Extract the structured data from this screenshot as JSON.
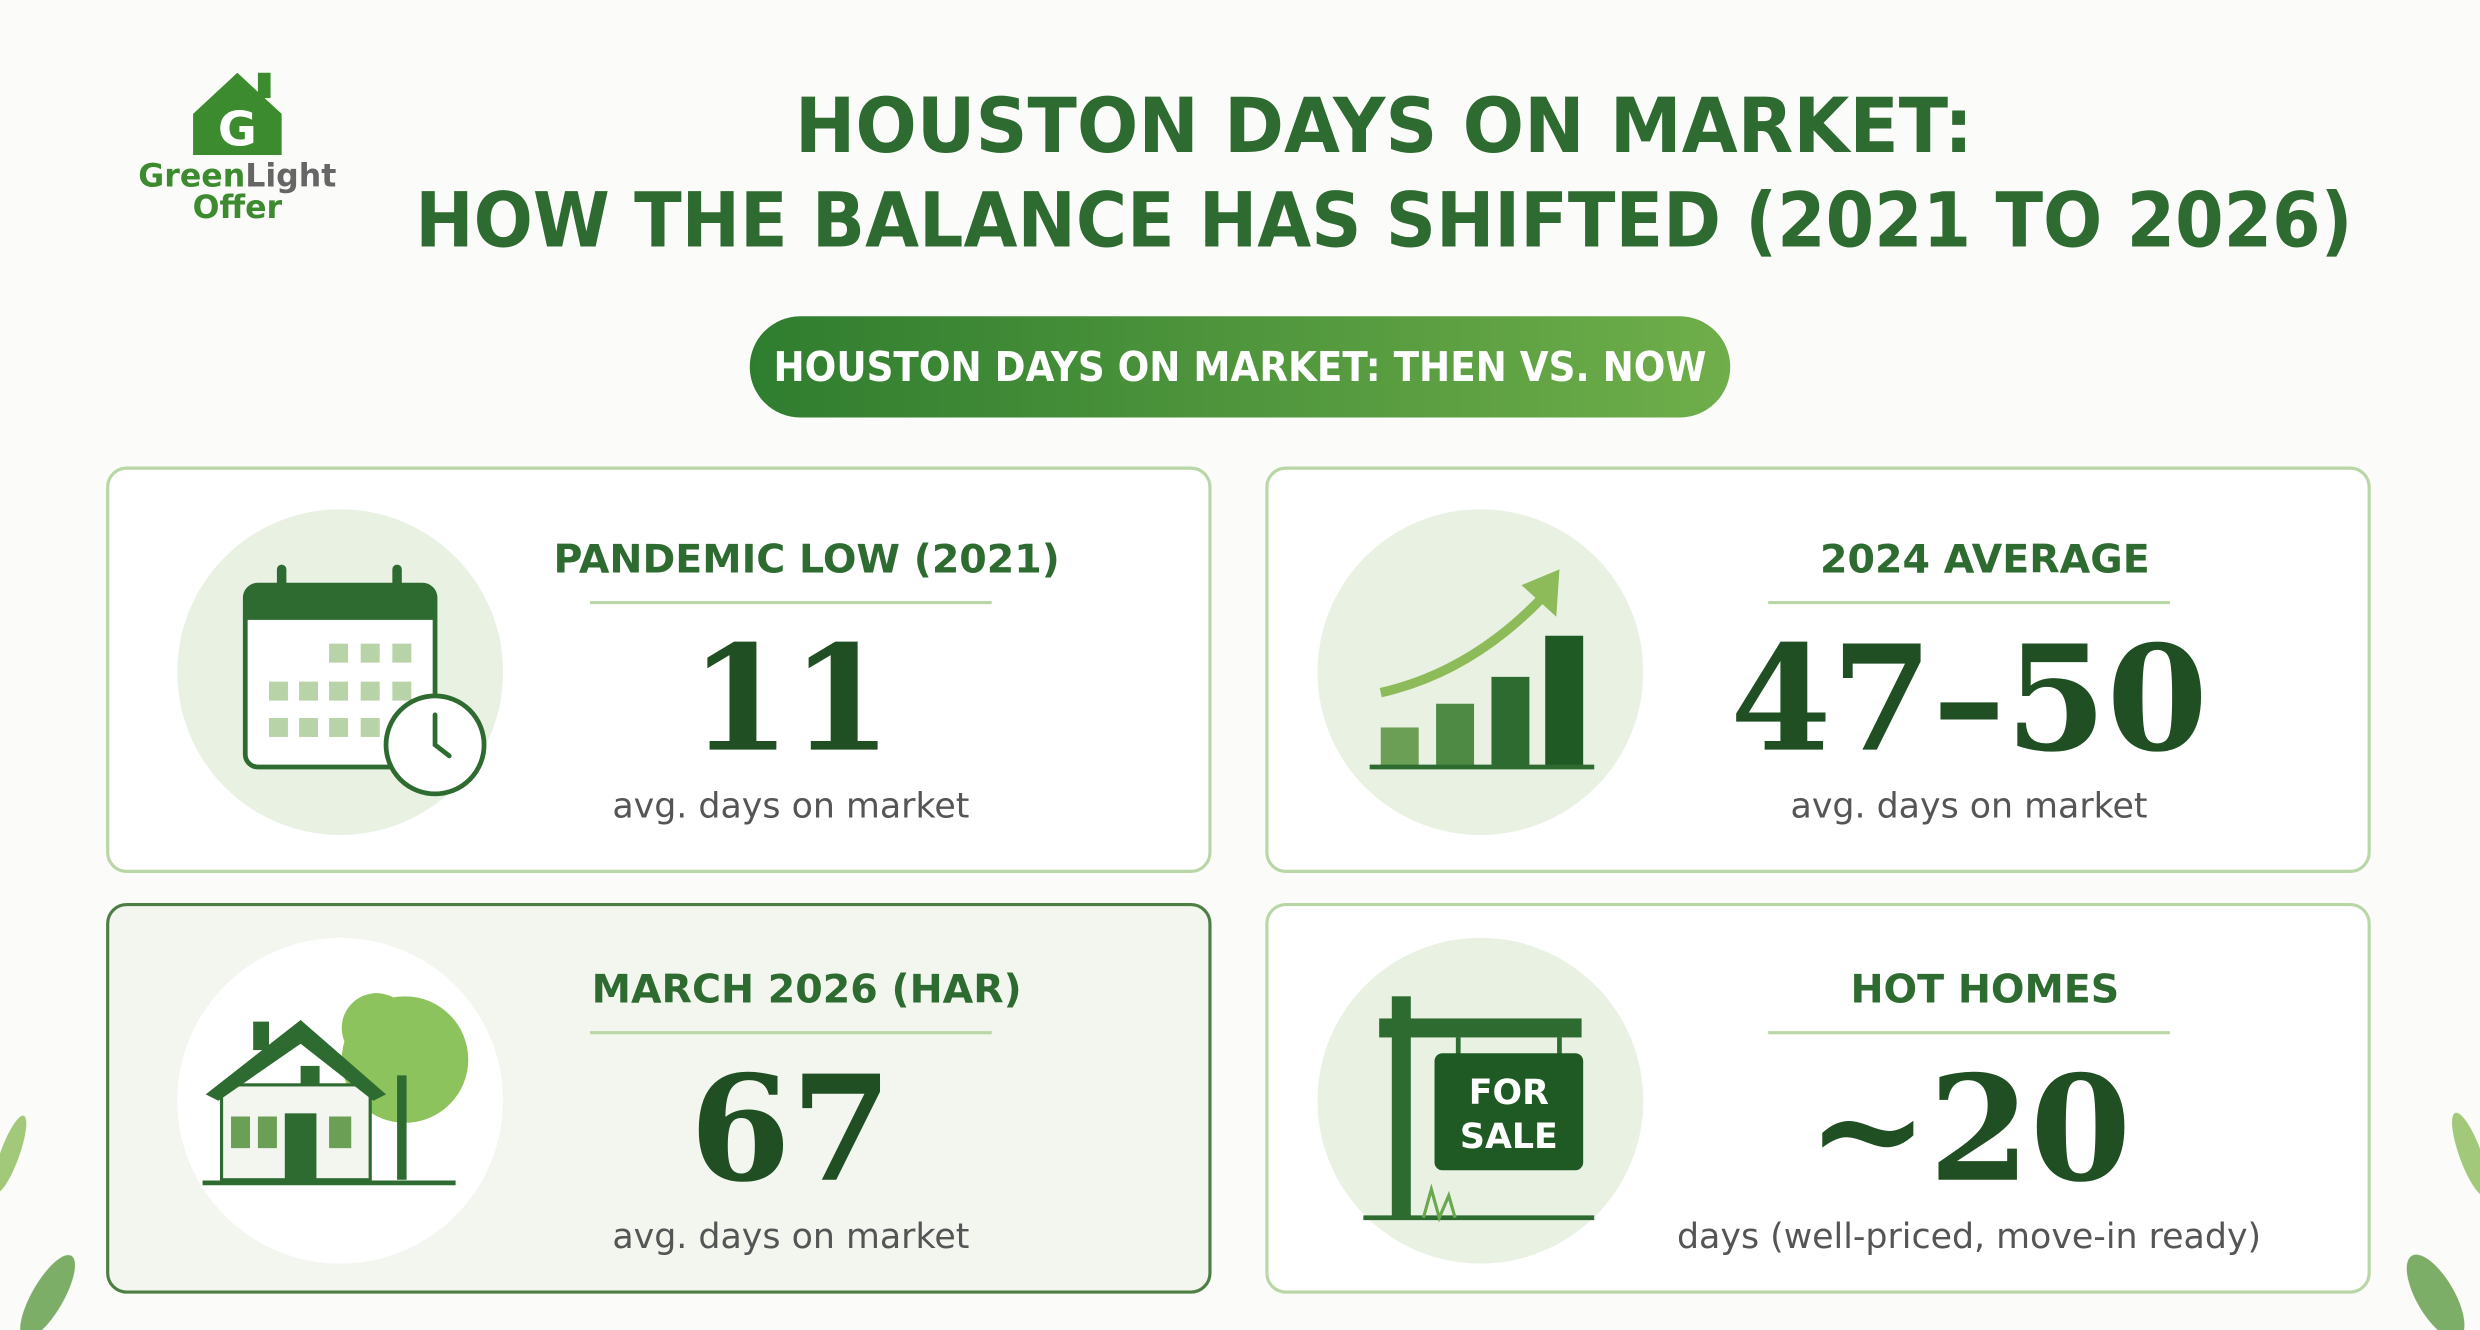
{
  "logo": {
    "part_1": "Green",
    "part_2": "Light",
    "part_3": "Offer"
  },
  "title": {
    "line_1": "HOUSTON DAYS ON MARKET:",
    "line_2": "HOW THE BALANCE HAS SHIFTED (2021 TO 2026)"
  },
  "badge": "HOUSTON DAYS ON MARKET: THEN VS. NOW",
  "cards": [
    {
      "label": "PANDEMIC LOW (2021)",
      "value": "11",
      "caption": "avg. days on market"
    },
    {
      "label": "2024 AVERAGE",
      "value": "47–50",
      "caption": "avg. days on market"
    },
    {
      "label": "MARCH 2026 (HAR)",
      "value": "67",
      "caption": "avg. days on market"
    },
    {
      "label": "HOT HOMES",
      "value": "~20",
      "caption": "days (well-priced, move-in ready)"
    }
  ]
}
